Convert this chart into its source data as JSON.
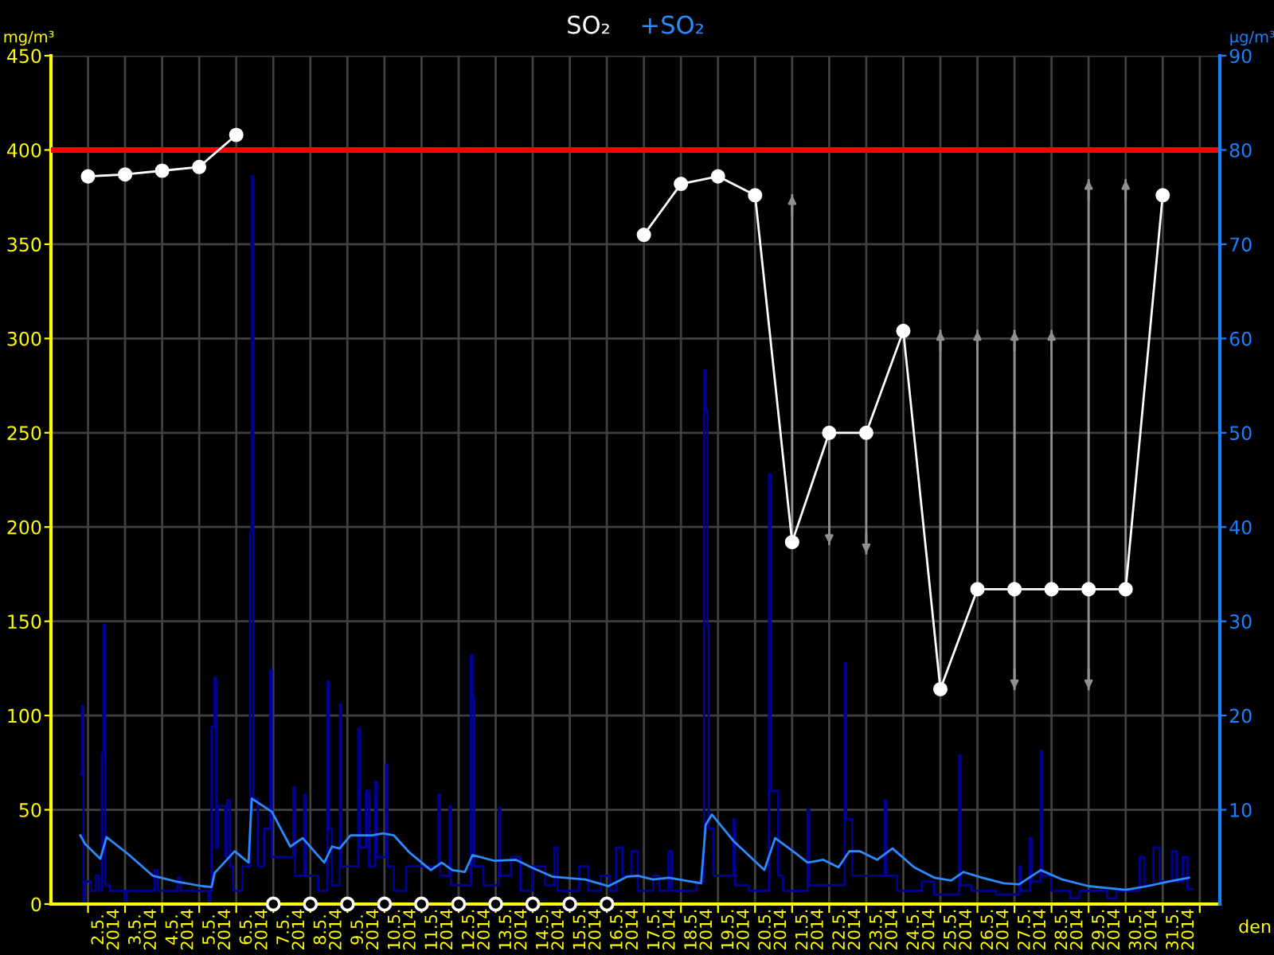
{
  "chart_data": {
    "type": "line",
    "xlabel": "den",
    "ylabel": "mg/m³",
    "y2label": "µg/m³",
    "grid": true,
    "legend": "top",
    "xlim": [
      "2014-05-01T00:00",
      "2014-06-01T13:00"
    ],
    "xticks": [
      {
        "value": "2014-05-02T00:00",
        "label": null
      },
      {
        "value": "2014-05-03T00:00",
        "label": null
      },
      {
        "value": "2014-05-04T00:00",
        "label": null
      },
      {
        "value": "2014-05-05T00:00",
        "label": null
      },
      {
        "value": "2014-05-06T00:00",
        "label": null
      },
      {
        "value": "2014-05-07T00:00",
        "label": null
      },
      {
        "value": "2014-05-08T00:00",
        "label": null
      },
      {
        "value": "2014-05-09T00:00",
        "label": null
      },
      {
        "value": "2014-05-10T00:00",
        "label": null
      },
      {
        "value": "2014-05-11T00:00",
        "label": null
      },
      {
        "value": "2014-05-12T00:00",
        "label": null
      },
      {
        "value": "2014-05-13T00:00",
        "label": null
      },
      {
        "value": "2014-05-14T00:00",
        "label": null
      },
      {
        "value": "2014-05-15T00:00",
        "label": null
      },
      {
        "value": "2014-05-16T00:00",
        "label": null
      },
      {
        "value": "2014-05-17T00:00",
        "label": null
      },
      {
        "value": "2014-05-18T00:00",
        "label": null
      },
      {
        "value": "2014-05-19T00:00",
        "label": null
      },
      {
        "value": "2014-05-20T00:00",
        "label": null
      },
      {
        "value": "2014-05-21T00:00",
        "label": null
      },
      {
        "value": "2014-05-22T00:00",
        "label": null
      },
      {
        "value": "2014-05-23T00:00",
        "label": null
      },
      {
        "value": "2014-05-24T00:00",
        "label": null
      },
      {
        "value": "2014-05-25T00:00",
        "label": null
      },
      {
        "value": "2014-05-26T00:00",
        "label": null
      },
      {
        "value": "2014-05-27T00:00",
        "label": null
      },
      {
        "value": "2014-05-28T00:00",
        "label": null
      },
      {
        "value": "2014-05-29T00:00",
        "label": null
      },
      {
        "value": "2014-05-30T00:00",
        "label": null
      },
      {
        "value": "2014-05-31T00:00",
        "label": null
      },
      {
        "value": "2014-06-01T00:00",
        "label": null
      },
      {
        "value": "2014-05-02T12:00",
        "label": "2.5.\n2014"
      },
      {
        "value": "2014-05-03T12:00",
        "label": "3.5.\n2014"
      },
      {
        "value": "2014-05-04T12:00",
        "label": "4.5.\n2014"
      },
      {
        "value": "2014-05-05T12:00",
        "label": "5.5.\n2014"
      },
      {
        "value": "2014-05-06T12:00",
        "label": "6.5.\n2014"
      },
      {
        "value": "2014-05-07T12:00",
        "label": "7.5.\n2014"
      },
      {
        "value": "2014-05-08T12:00",
        "label": "8.5.\n2014"
      },
      {
        "value": "2014-05-09T12:00",
        "label": "9.5.\n2014"
      },
      {
        "value": "2014-05-10T12:00",
        "label": "10.5.\n2014"
      },
      {
        "value": "2014-05-11T12:00",
        "label": "11.5.\n2014"
      },
      {
        "value": "2014-05-12T12:00",
        "label": "12.5.\n2014"
      },
      {
        "value": "2014-05-13T12:00",
        "label": "13.5.\n2014"
      },
      {
        "value": "2014-05-14T12:00",
        "label": "14.5.\n2014"
      },
      {
        "value": "2014-05-15T12:00",
        "label": "15.5.\n2014"
      },
      {
        "value": "2014-05-16T12:00",
        "label": "16.5.\n2014"
      },
      {
        "value": "2014-05-17T12:00",
        "label": "17.5.\n2014"
      },
      {
        "value": "2014-05-18T12:00",
        "label": "18.5.\n2014"
      },
      {
        "value": "2014-05-19T12:00",
        "label": "19.5.\n2014"
      },
      {
        "value": "2014-05-20T12:00",
        "label": "20.5.\n2014"
      },
      {
        "value": "2014-05-21T12:00",
        "label": "21.5.\n2014"
      },
      {
        "value": "2014-05-22T12:00",
        "label": "22.5.\n2014"
      },
      {
        "value": "2014-05-23T12:00",
        "label": "23.5.\n2014"
      },
      {
        "value": "2014-05-24T12:00",
        "label": "24.5.\n2014"
      },
      {
        "value": "2014-05-25T12:00",
        "label": "25.5.\n2014"
      },
      {
        "value": "2014-05-26T12:00",
        "label": "26.5.\n2014"
      },
      {
        "value": "2014-05-27T12:00",
        "label": "27.5.\n2014"
      },
      {
        "value": "2014-05-28T12:00",
        "label": "28.5.\n2014"
      },
      {
        "value": "2014-05-29T12:00",
        "label": "29.5.\n2014"
      },
      {
        "value": "2014-05-30T12:00",
        "label": "30.5.\n2014"
      },
      {
        "value": "2014-05-31T12:00",
        "label": "31.5.\n2014"
      }
    ],
    "ylim": [
      0,
      450
    ],
    "yticks": [
      0,
      50,
      100,
      150,
      200,
      250,
      300,
      350,
      400,
      450
    ],
    "y2lim": [
      0,
      90
    ],
    "y2ticks": [
      10,
      20,
      30,
      40,
      50,
      60,
      70,
      80,
      90
    ],
    "ref_lines": [
      {
        "axis": "y",
        "value": 400,
        "color": "#ff0000"
      }
    ],
    "series": [
      {
        "type": "step",
        "color": "#000096",
        "x": [
          "2014-05-01T19:00",
          "2014-05-01T20:00",
          "2014-05-01T21:00",
          "2014-05-01T22:00",
          "2014-05-02T02:00",
          "2014-05-02T05:00",
          "2014-05-02T07:00",
          "2014-05-02T09:00",
          "2014-05-02T10:00",
          "2014-05-02T11:00",
          "2014-05-02T14:00",
          "2014-05-03T00:00",
          "2014-05-03T01:00",
          "2014-05-03T19:00",
          "2014-05-03T21:00",
          "2014-05-04T10:00",
          "2014-05-04T12:00",
          "2014-05-05T06:00",
          "2014-05-05T07:00",
          "2014-05-05T08:00",
          "2014-05-05T10:00",
          "2014-05-05T11:00",
          "2014-05-05T12:00",
          "2014-05-05T17:00",
          "2014-05-05T18:00",
          "2014-05-05T20:00",
          "2014-05-05T22:00",
          "2014-05-06T04:00",
          "2014-05-06T09:00",
          "2014-05-06T10:00",
          "2014-05-06T11:00",
          "2014-05-06T14:00",
          "2014-05-06T18:00",
          "2014-05-06T22:00",
          "2014-05-06T23:00",
          "2014-05-07T13:00",
          "2014-05-07T14:00",
          "2014-05-07T20:00",
          "2014-05-07T21:00",
          "2014-05-08T05:00",
          "2014-05-08T11:00",
          "2014-05-08T12:00",
          "2014-05-08T14:00",
          "2014-05-08T19:00",
          "2014-05-08T20:00",
          "2014-05-09T07:00",
          "2014-05-09T08:00",
          "2014-05-09T12:00",
          "2014-05-09T14:00",
          "2014-05-09T18:00",
          "2014-05-09T19:00",
          "2014-05-10T01:00",
          "2014-05-10T02:00",
          "2014-05-10T06:00",
          "2014-05-10T14:00",
          "2014-05-11T11:00",
          "2014-05-11T12:00",
          "2014-05-11T18:00",
          "2014-05-11T19:00",
          "2014-05-12T08:00",
          "2014-05-12T09:00",
          "2014-05-12T10:00",
          "2014-05-12T16:00",
          "2014-05-13T02:00",
          "2014-05-13T03:00",
          "2014-05-13T10:00",
          "2014-05-13T16:00",
          "2014-05-14T00:00",
          "2014-05-14T08:00",
          "2014-05-14T14:00",
          "2014-05-14T16:00",
          "2014-05-15T06:00",
          "2014-05-15T12:00",
          "2014-05-15T20:00",
          "2014-05-16T02:00",
          "2014-05-16T06:00",
          "2014-05-16T10:00",
          "2014-05-16T16:00",
          "2014-05-16T20:00",
          "2014-05-17T06:00",
          "2014-05-17T10:00",
          "2014-05-17T16:00",
          "2014-05-17T18:00",
          "2014-05-18T10:00",
          "2014-05-18T15:00",
          "2014-05-18T16:00",
          "2014-05-18T17:00",
          "2014-05-18T18:00",
          "2014-05-18T21:00",
          "2014-05-19T10:00",
          "2014-05-19T11:00",
          "2014-05-19T20:00",
          "2014-05-20T09:00",
          "2014-05-20T10:00",
          "2014-05-20T15:00",
          "2014-05-20T18:00",
          "2014-05-21T10:00",
          "2014-05-21T11:00",
          "2014-05-22T10:00",
          "2014-05-22T11:00",
          "2014-05-22T15:00",
          "2014-05-23T12:00",
          "2014-05-23T13:00",
          "2014-05-23T20:00",
          "2014-05-24T12:00",
          "2014-05-24T20:00",
          "2014-05-25T12:00",
          "2014-05-25T13:00",
          "2014-05-25T20:00",
          "2014-05-26T12:00",
          "2014-05-27T03:00",
          "2014-05-27T04:00",
          "2014-05-27T10:00",
          "2014-05-27T11:00",
          "2014-05-27T17:00",
          "2014-05-27T18:00",
          "2014-05-28T00:00",
          "2014-05-28T12:00",
          "2014-05-28T18:00",
          "2014-05-29T12:00",
          "2014-05-29T18:00",
          "2014-05-30T09:00",
          "2014-05-30T12:00",
          "2014-05-30T18:00",
          "2014-05-30T22:00",
          "2014-05-31T06:00",
          "2014-05-31T09:00",
          "2014-05-31T13:00",
          "2014-05-31T16:00",
          "2014-05-31T19:00"
        ],
        "values": [
          69,
          105,
          0,
          12,
          7,
          15,
          7,
          80,
          148,
          10,
          7,
          0,
          7,
          18,
          7,
          14,
          7,
          0,
          7,
          94,
          120,
          30,
          52,
          25,
          55,
          20,
          7,
          20,
          198,
          386,
          56,
          20,
          40,
          124,
          25,
          62,
          15,
          58,
          15,
          7,
          118,
          40,
          10,
          106,
          20,
          93,
          30,
          60,
          20,
          65,
          25,
          74,
          20,
          7,
          20,
          58,
          15,
          52,
          10,
          132,
          110,
          20,
          10,
          51,
          15,
          25,
          7,
          20,
          10,
          30,
          7,
          20,
          7,
          15,
          7,
          30,
          15,
          28,
          7,
          15,
          7,
          28,
          7,
          12,
          283,
          262,
          148,
          40,
          15,
          45,
          10,
          7,
          228,
          60,
          15,
          7,
          50,
          10,
          128,
          45,
          15,
          55,
          15,
          7,
          12,
          5,
          79,
          10,
          7,
          5,
          20,
          7,
          35,
          12,
          81,
          15,
          7,
          3,
          7,
          3,
          7,
          25,
          10,
          30,
          12,
          28,
          12,
          25,
          8,
          8
        ]
      },
      {
        "name": "+SO₂",
        "color": "#2a8cff",
        "axis": "y2",
        "x": [
          "2014-05-01T19:00",
          "2014-05-01T22:00",
          "2014-05-02T08:00",
          "2014-05-02T12:00",
          "2014-05-03T02:00",
          "2014-05-03T18:00",
          "2014-05-04T09:00",
          "2014-05-05T02:00",
          "2014-05-05T08:00",
          "2014-05-05T10:00",
          "2014-05-05T23:00",
          "2014-05-06T08:00",
          "2014-05-06T10:00",
          "2014-05-06T23:00",
          "2014-05-07T11:00",
          "2014-05-07T19:00",
          "2014-05-08T09:00",
          "2014-05-08T14:00",
          "2014-05-08T19:00",
          "2014-05-09T02:00",
          "2014-05-09T16:00",
          "2014-05-09T23:00",
          "2014-05-10T06:00",
          "2014-05-10T16:00",
          "2014-05-11T06:00",
          "2014-05-11T13:00",
          "2014-05-11T20:00",
          "2014-05-12T04:00",
          "2014-05-12T09:00",
          "2014-05-12T23:00",
          "2014-05-13T13:00",
          "2014-05-13T23:00",
          "2014-05-14T13:00",
          "2014-05-15T10:00",
          "2014-05-16T01:00",
          "2014-05-16T13:00",
          "2014-05-16T20:00",
          "2014-05-17T06:00",
          "2014-05-17T16:00",
          "2014-05-18T13:00",
          "2014-05-18T16:00",
          "2014-05-18T20:00",
          "2014-05-19T10:00",
          "2014-05-20T06:00",
          "2014-05-20T13:00",
          "2014-05-21T03:00",
          "2014-05-21T10:00",
          "2014-05-21T20:00",
          "2014-05-22T06:00",
          "2014-05-22T13:00",
          "2014-05-22T20:00",
          "2014-05-23T07:00",
          "2014-05-23T17:00",
          "2014-05-24T07:00",
          "2014-05-24T20:00",
          "2014-05-25T07:00",
          "2014-05-25T15:00",
          "2014-05-26T03:00",
          "2014-05-26T17:00",
          "2014-05-27T03:00",
          "2014-05-27T17:00",
          "2014-05-28T07:00",
          "2014-05-29T00:00",
          "2014-05-30T00:00",
          "2014-05-30T14:00",
          "2014-05-31T04:00",
          "2014-05-31T17:00"
        ],
        "values": [
          7.3,
          6.4,
          4.8,
          7.1,
          5.3,
          3.0,
          2.4,
          1.9,
          1.8,
          3.3,
          5.6,
          4.4,
          11.2,
          9.8,
          6.1,
          7.0,
          4.4,
          6.1,
          5.9,
          7.3,
          7.3,
          7.5,
          7.3,
          5.5,
          3.6,
          4.4,
          3.6,
          3.4,
          5.2,
          4.6,
          4.7,
          3.9,
          2.9,
          2.6,
          1.9,
          2.9,
          3.0,
          2.6,
          2.8,
          2.2,
          8.4,
          9.5,
          6.7,
          3.6,
          7.0,
          5.3,
          4.4,
          4.7,
          3.9,
          5.6,
          5.6,
          4.7,
          5.9,
          3.9,
          2.8,
          2.5,
          3.4,
          2.8,
          2.2,
          2.1,
          3.6,
          2.6,
          1.9,
          1.5,
          1.9,
          2.4,
          2.8
        ]
      },
      {
        "name": "SO₂",
        "color": "#ffffff",
        "marker": "circle",
        "x": [
          "2014-05-02T00:00",
          "2014-05-03T00:00",
          "2014-05-04T00:00",
          "2014-05-05T00:00",
          "2014-05-06T00:00",
          "2014-05-07T00:00",
          "2014-05-08T00:00",
          "2014-05-09T00:00",
          "2014-05-10T00:00",
          "2014-05-11T00:00",
          "2014-05-12T00:00",
          "2014-05-13T00:00",
          "2014-05-14T00:00",
          "2014-05-15T00:00",
          "2014-05-16T00:00",
          "2014-05-17T00:00",
          "2014-05-18T00:00",
          "2014-05-19T00:00",
          "2014-05-20T00:00",
          "2014-05-21T00:00",
          "2014-05-22T00:00",
          "2014-05-23T00:00",
          "2014-05-24T00:00",
          "2014-05-25T00:00",
          "2014-05-26T00:00",
          "2014-05-27T00:00",
          "2014-05-28T00:00",
          "2014-05-29T00:00",
          "2014-05-30T00:00",
          "2014-05-31T00:00"
        ],
        "values": [
          386,
          387,
          389,
          391,
          408,
          null,
          null,
          null,
          null,
          null,
          null,
          null,
          null,
          null,
          null,
          355,
          382,
          386,
          376,
          192,
          250,
          250,
          304,
          114,
          167,
          167,
          167,
          167,
          167,
          376
        ],
        "errors": [
          null,
          null,
          null,
          null,
          null,
          null,
          null,
          null,
          null,
          null,
          null,
          null,
          null,
          null,
          null,
          null,
          null,
          null,
          null,
          [
            192,
            376
          ],
          [
            191,
            250
          ],
          [
            186,
            250
          ],
          null,
          [
            114,
            304
          ],
          [
            167,
            304
          ],
          [
            114,
            304
          ],
          [
            167,
            304
          ],
          [
            114,
            384
          ],
          [
            167,
            384
          ],
          null
        ]
      },
      {
        "type": "scatter",
        "color": "#ffffff",
        "marker": "circle",
        "x": [
          "2014-05-07T00:00",
          "2014-05-08T00:00",
          "2014-05-09T00:00",
          "2014-05-10T00:00",
          "2014-05-11T00:00",
          "2014-05-12T00:00",
          "2014-05-13T00:00",
          "2014-05-14T00:00",
          "2014-05-15T00:00",
          "2014-05-16T00:00"
        ],
        "values": [
          0,
          0,
          0,
          0,
          0,
          0,
          0,
          0,
          0,
          0
        ]
      }
    ]
  }
}
